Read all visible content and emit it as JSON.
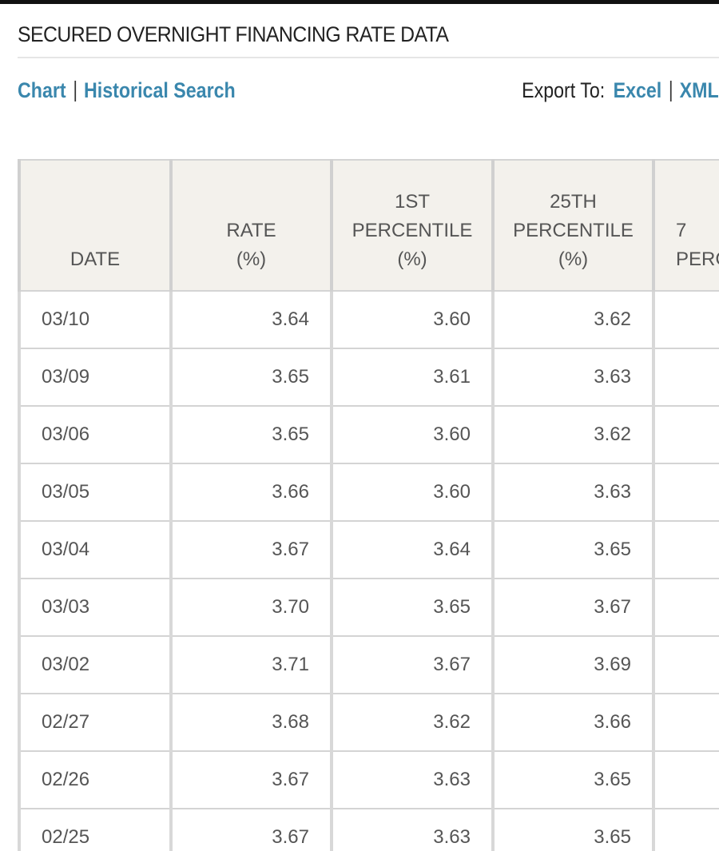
{
  "header": {
    "title": "SECURED OVERNIGHT FINANCING RATE DATA"
  },
  "links": {
    "chart": "Chart",
    "historical_search": "Historical Search",
    "export_label": "Export To:",
    "excel": "Excel",
    "xml": "XML"
  },
  "table": {
    "columns": [
      [
        "DATE"
      ],
      [
        "RATE",
        "(%)"
      ],
      [
        "1ST",
        "PERCENTILE",
        "(%)"
      ],
      [
        "25TH",
        "PERCENTILE",
        "(%)"
      ],
      [
        "7",
        "PERC"
      ]
    ],
    "rows": [
      [
        "03/10",
        "3.64",
        "3.60",
        "3.62"
      ],
      [
        "03/09",
        "3.65",
        "3.61",
        "3.63"
      ],
      [
        "03/06",
        "3.65",
        "3.60",
        "3.62"
      ],
      [
        "03/05",
        "3.66",
        "3.60",
        "3.63"
      ],
      [
        "03/04",
        "3.67",
        "3.64",
        "3.65"
      ],
      [
        "03/03",
        "3.70",
        "3.65",
        "3.67"
      ],
      [
        "03/02",
        "3.71",
        "3.67",
        "3.69"
      ],
      [
        "02/27",
        "3.68",
        "3.62",
        "3.66"
      ],
      [
        "02/26",
        "3.67",
        "3.63",
        "3.65"
      ],
      [
        "02/25",
        "3.67",
        "3.63",
        "3.65"
      ]
    ]
  }
}
